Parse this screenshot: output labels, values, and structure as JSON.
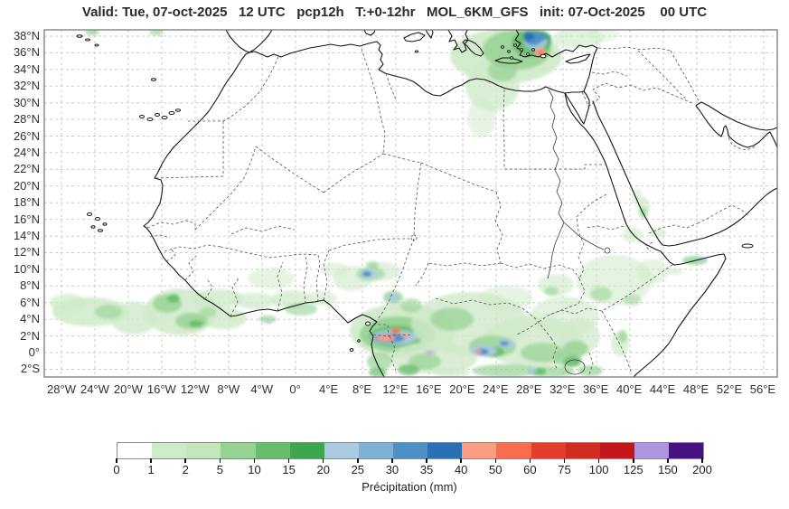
{
  "title": "Valid: Tue, 07-oct-2025   12 UTC   pcp12h   T:+0-12hr   MOL_6KM_GFS   init: 07-Oct-2025    00 UTC",
  "map": {
    "lat_labels": [
      "38°N",
      "36°N",
      "34°N",
      "32°N",
      "30°N",
      "28°N",
      "26°N",
      "24°N",
      "22°N",
      "20°N",
      "18°N",
      "16°N",
      "14°N",
      "12°N",
      "10°N",
      "8°N",
      "6°N",
      "4°N",
      "2°N",
      "0°",
      "2°S"
    ],
    "lon_labels": [
      "28°W",
      "24°W",
      "20°W",
      "16°W",
      "12°W",
      "8°W",
      "4°W",
      "0°",
      "4°E",
      "8°E",
      "12°E",
      "16°E",
      "20°E",
      "24°E",
      "28°E",
      "32°E",
      "36°E",
      "40°E",
      "44°E",
      "48°E",
      "52°E",
      "56°E"
    ]
  },
  "legend": {
    "caption": "Précipitation (mm)",
    "tick_labels": [
      "0",
      "1",
      "2",
      "5",
      "10",
      "15",
      "20",
      "25",
      "30",
      "35",
      "40",
      "50",
      "60",
      "75",
      "100",
      "125",
      "150",
      "200"
    ],
    "cell_colors": [
      "#ffffff",
      "#cfeac9",
      "#c5e5bd",
      "#96d294",
      "#68bd6c",
      "#3fa650",
      "#abcbe2",
      "#7fb0d5",
      "#4e8fc5",
      "#2b70b2",
      "#fb9d83",
      "#f86c50",
      "#e43d2d",
      "#d22b22",
      "#c2161b",
      "#ae95e0",
      "#45137f"
    ]
  }
}
